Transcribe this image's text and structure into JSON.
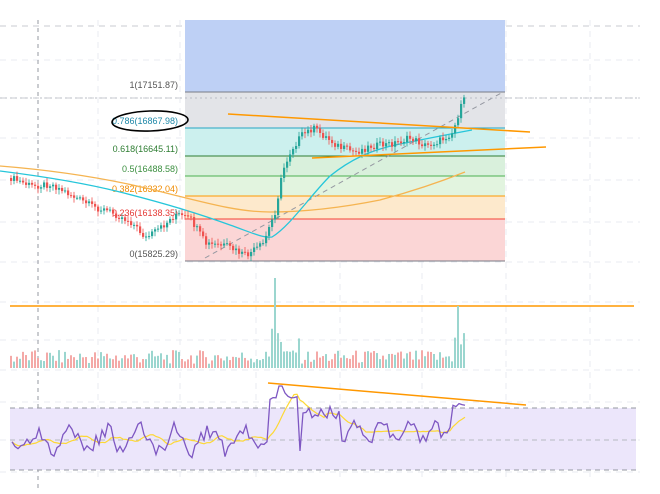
{
  "fib_levels": [
    {
      "ratio": "1",
      "price": "17151.87",
      "label": "1(17151.87)",
      "color": "#787b86"
    },
    {
      "ratio": "0.786",
      "price": "16867.98",
      "label": "0.786(16867.98)",
      "color": "#26a6c4"
    },
    {
      "ratio": "0.618",
      "price": "16645.11",
      "label": "0.618(16645.11)",
      "color": "#2e7d32"
    },
    {
      "ratio": "0.5",
      "price": "16488.58",
      "label": "0.5(16488.58)",
      "color": "#4caf50"
    },
    {
      "ratio": "0.382",
      "price": "16332.04",
      "label": "0.382(16332.04)",
      "color": "#ff9800"
    },
    {
      "ratio": "0.236",
      "price": "16138.35",
      "label": "0.236(16138.35)",
      "color": "#f44336"
    },
    {
      "ratio": "0",
      "price": "15825.29",
      "label": "0(15825.29)",
      "color": "#787b86"
    }
  ],
  "colors": {
    "up_candle": "#26a69a",
    "down_candle": "#ef5350",
    "trendline": "#ff9800",
    "ma_slow": "#ffb74d",
    "ma_fast": "#26c6da",
    "rsi_line": "#7e57c2",
    "rsi_ma": "#fdd835",
    "fib_top_zone": "#bbd0f7",
    "rsi_band": "#ece6fb",
    "annotation_ring": "#000000"
  },
  "annotation": {
    "shape": "hand-drawn ellipse",
    "target_level": "0.786"
  }
}
